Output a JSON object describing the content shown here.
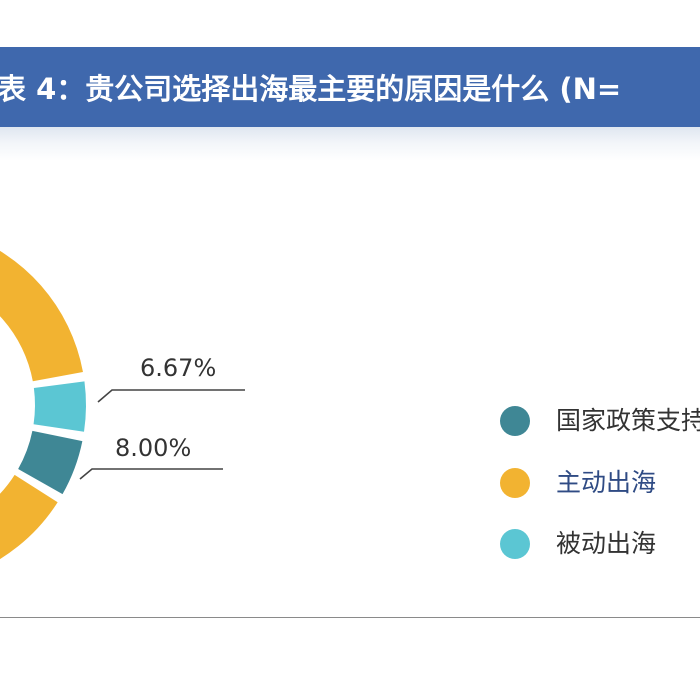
{
  "chart_data": {
    "type": "pie",
    "title": "表 4：贵公司选择出海最主要的原因是什么 (N=",
    "categories": [
      "国家政策支持",
      "主动出海",
      "被动出海"
    ],
    "values": [
      null,
      null,
      6.67
    ],
    "visible_data_labels": [
      "6.67%",
      "8.00%"
    ],
    "legend_position": "right",
    "colors": {
      "国家政策支持": "#3f8795",
      "主动出海": "#f2b331",
      "被动出海": "#5bc6d3"
    }
  },
  "legend": {
    "items": [
      {
        "label": "国家政策支持",
        "color": "#3f8795"
      },
      {
        "label": "主动出海",
        "color": "#f2b331"
      },
      {
        "label": "被动出海",
        "color": "#5bc6d3"
      }
    ]
  },
  "header": {
    "banner_color": "#3f68ad"
  }
}
